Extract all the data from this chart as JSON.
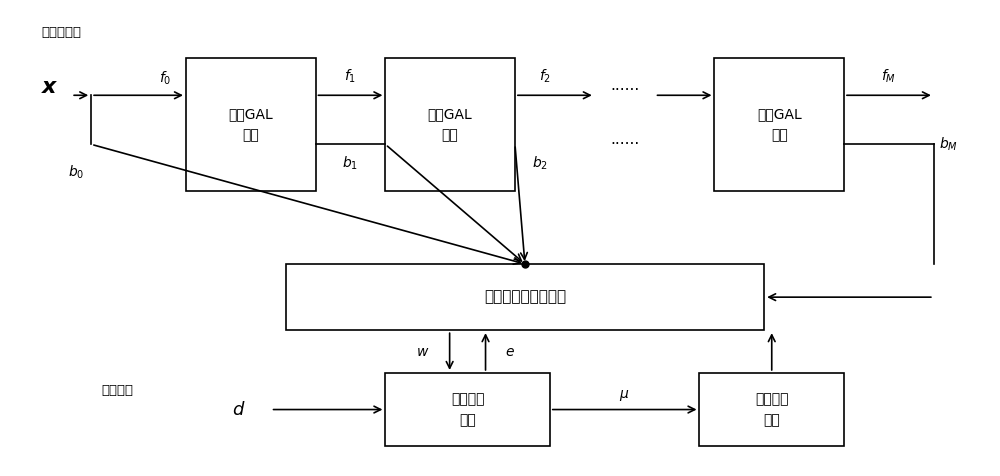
{
  "bg_color": "#ffffff",
  "box_edge_color": "#000000",
  "arrow_color": "#000000",
  "text_color": "#000000",
  "gal1": [
    0.185,
    0.6,
    0.13,
    0.28
  ],
  "gal2": [
    0.385,
    0.6,
    0.13,
    0.28
  ],
  "gal3": [
    0.715,
    0.6,
    0.13,
    0.28
  ],
  "adapt": [
    0.285,
    0.305,
    0.48,
    0.14
  ],
  "error": [
    0.385,
    0.06,
    0.165,
    0.155
  ],
  "step": [
    0.7,
    0.06,
    0.145,
    0.155
  ],
  "filter_input": "滤波器输入",
  "gal_label": "单节GAL\n模块",
  "adapt_label": "自适应权値调整模块",
  "error_label": "误差计算\n模块",
  "step_label": "步长调整\n模块",
  "desired_label": "期望输出",
  "dots": "......",
  "f0": "$f_0$",
  "f1": "$f_1$",
  "f2": "$f_2$",
  "fM": "$f_M$",
  "b0": "$b_0$",
  "b1": "$b_1$",
  "b2": "$b_2$",
  "bM": "$b_M$",
  "w_label": "$w$",
  "e_label": "$e$",
  "mu_label": "$\\mu$",
  "d_label": "$d$",
  "x_label": "$\\boldsymbol{x}$"
}
